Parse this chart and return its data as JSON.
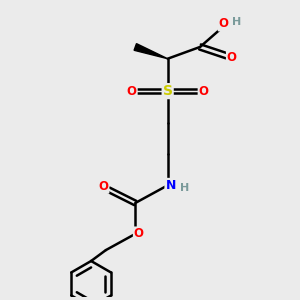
{
  "bg_color": "#ebebeb",
  "atom_colors": {
    "C": "#000000",
    "H": "#7a9a9a",
    "O": "#ff0000",
    "N": "#0000ff",
    "S": "#cccc00"
  },
  "bond_color": "#000000",
  "bond_width": 1.8,
  "figsize": [
    3.0,
    3.0
  ],
  "dpi": 100,
  "xlim": [
    0,
    10
  ],
  "ylim": [
    0,
    10
  ]
}
